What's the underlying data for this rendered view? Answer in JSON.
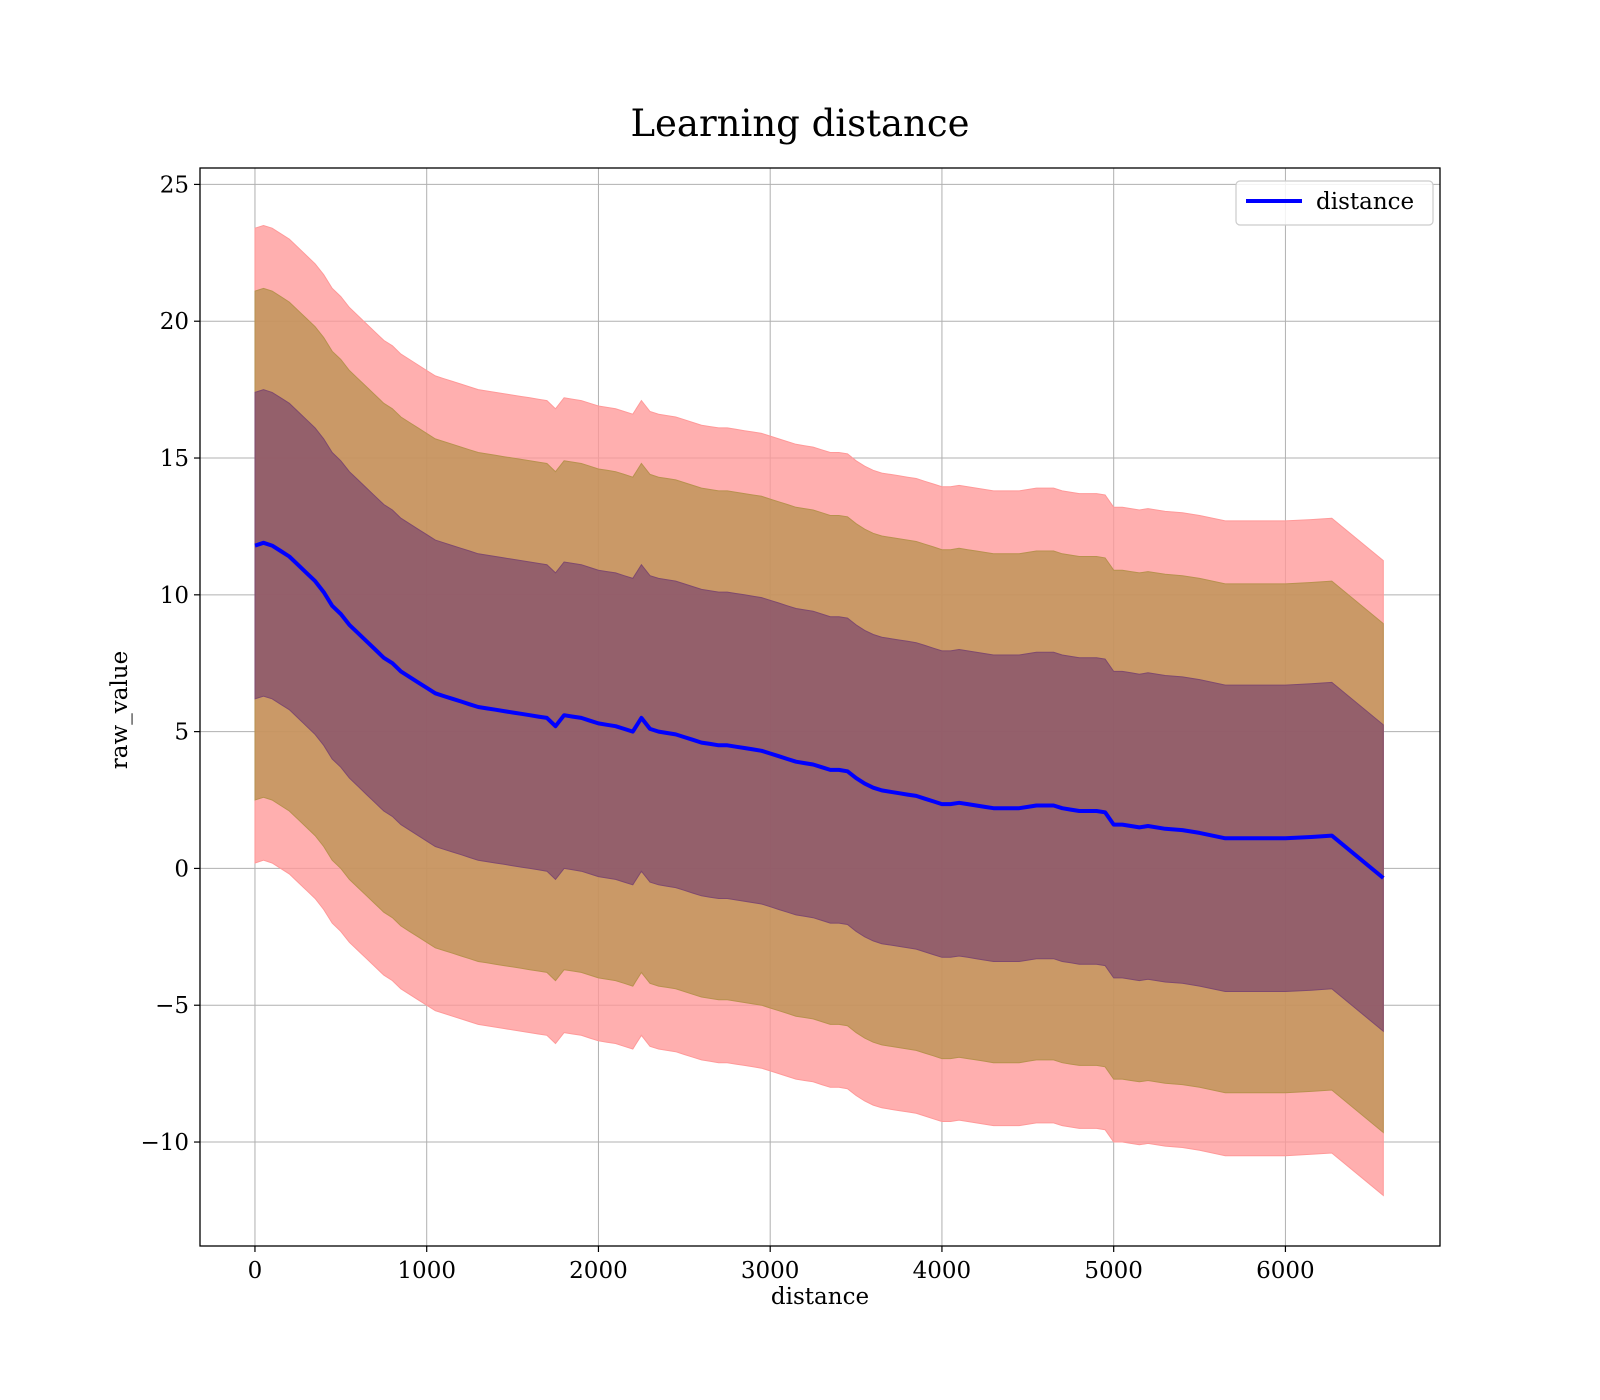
{
  "chart_data": {
    "type": "area",
    "title": "Learning distance",
    "xlabel": "distance",
    "ylabel": "raw_value",
    "xlim": [
      -320,
      6900
    ],
    "ylim": [
      -13.8,
      25.6
    ],
    "xticks": [
      0,
      1000,
      2000,
      3000,
      4000,
      5000,
      6000
    ],
    "yticks": [
      -10,
      -5,
      0,
      5,
      10,
      15,
      20,
      25
    ],
    "xtick_labels": [
      "0",
      "1000",
      "2000",
      "3000",
      "4000",
      "5000",
      "6000"
    ],
    "ytick_labels": [
      "−10",
      "−5",
      "0",
      "5",
      "10",
      "15",
      "20",
      "25"
    ],
    "grid": true,
    "legend": {
      "position": "top-right",
      "entries": [
        "distance"
      ]
    },
    "colors": {
      "line": "#0000ff",
      "band_outer": "#ff9999",
      "band_mid": "#b8914f",
      "band_inner": "#7f4a6e",
      "grid": "#b0b0b0"
    },
    "bands": [
      {
        "sigma": 3,
        "half_width_start": 11.6,
        "half_width_end": 11.6
      },
      {
        "sigma": 2,
        "half_width_start": 9.3,
        "half_width_end": 9.3
      },
      {
        "sigma": 1,
        "half_width_start": 5.6,
        "half_width_end": 5.6
      }
    ],
    "series": [
      {
        "name": "distance",
        "x": [
          0,
          50,
          100,
          150,
          200,
          250,
          300,
          350,
          400,
          450,
          500,
          550,
          600,
          650,
          700,
          750,
          800,
          850,
          900,
          950,
          1000,
          1050,
          1100,
          1150,
          1200,
          1250,
          1300,
          1350,
          1400,
          1450,
          1500,
          1550,
          1600,
          1650,
          1700,
          1750,
          1800,
          1850,
          1900,
          1950,
          2000,
          2050,
          2100,
          2150,
          2200,
          2250,
          2300,
          2350,
          2400,
          2450,
          2500,
          2550,
          2600,
          2650,
          2700,
          2750,
          2800,
          2850,
          2900,
          2950,
          3000,
          3050,
          3100,
          3150,
          3200,
          3250,
          3300,
          3350,
          3400,
          3450,
          3500,
          3550,
          3600,
          3650,
          3700,
          3750,
          3800,
          3850,
          3900,
          3950,
          4000,
          4050,
          4100,
          4150,
          4200,
          4250,
          4300,
          4350,
          4400,
          4450,
          4500,
          4550,
          4600,
          4650,
          4700,
          4750,
          4800,
          4850,
          4900,
          4950,
          5000,
          5050,
          5100,
          5150,
          5200,
          5300,
          5400,
          5500,
          5650,
          5800,
          6000,
          6150,
          6270,
          6570
        ],
        "values": [
          11.8,
          11.9,
          11.8,
          11.6,
          11.4,
          11.1,
          10.8,
          10.5,
          10.1,
          9.6,
          9.3,
          8.9,
          8.6,
          8.3,
          8.0,
          7.7,
          7.5,
          7.2,
          7.0,
          6.8,
          6.6,
          6.4,
          6.3,
          6.2,
          6.1,
          6.0,
          5.9,
          5.85,
          5.8,
          5.75,
          5.7,
          5.65,
          5.6,
          5.55,
          5.5,
          5.2,
          5.6,
          5.55,
          5.5,
          5.4,
          5.3,
          5.25,
          5.2,
          5.1,
          5.0,
          5.5,
          5.1,
          5.0,
          4.95,
          4.9,
          4.8,
          4.7,
          4.6,
          4.55,
          4.5,
          4.5,
          4.45,
          4.4,
          4.35,
          4.3,
          4.2,
          4.1,
          4.0,
          3.9,
          3.85,
          3.8,
          3.7,
          3.6,
          3.6,
          3.55,
          3.3,
          3.1,
          2.95,
          2.85,
          2.8,
          2.75,
          2.7,
          2.65,
          2.55,
          2.45,
          2.35,
          2.35,
          2.4,
          2.35,
          2.3,
          2.25,
          2.2,
          2.2,
          2.2,
          2.2,
          2.25,
          2.3,
          2.3,
          2.3,
          2.2,
          2.15,
          2.1,
          2.1,
          2.1,
          2.05,
          1.6,
          1.6,
          1.55,
          1.5,
          1.55,
          1.45,
          1.4,
          1.3,
          1.1,
          1.1,
          1.1,
          1.15,
          1.2,
          -0.35
        ]
      }
    ]
  }
}
